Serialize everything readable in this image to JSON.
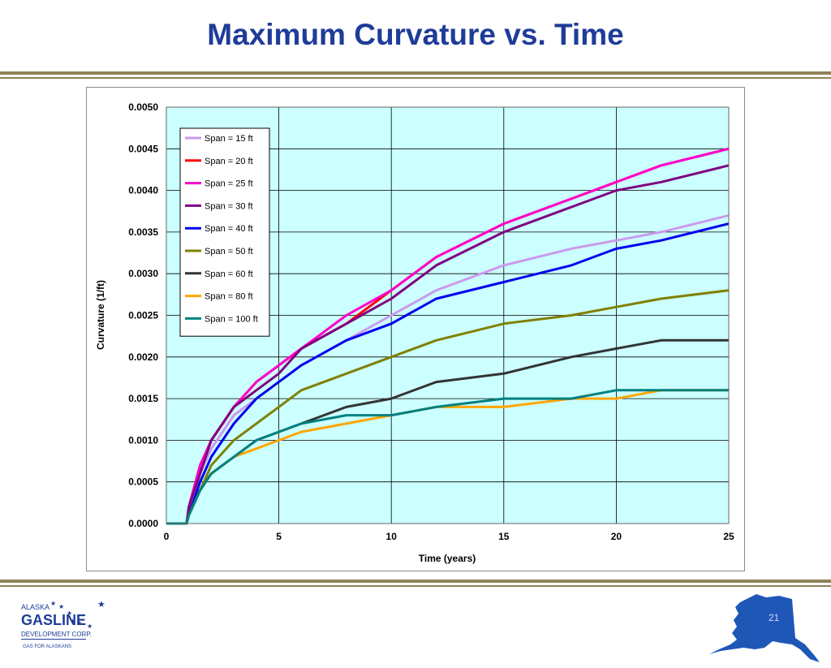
{
  "slide": {
    "title": "Maximum Curvature vs. Time",
    "page_number": "21"
  },
  "logo": {
    "line1": "ALASKA",
    "line2": "GASLINE",
    "line3": "DEVELOPMENT CORP.",
    "tagline": "GAS FOR ALASKANS"
  },
  "colors": {
    "plot_background": "#ccffff",
    "title": "#1f3c99",
    "rule": "#8f8257",
    "map": "#1f57b7"
  },
  "chart_data": {
    "type": "line",
    "xlabel": "Time (years)",
    "ylabel": "Curvature (1/ft)",
    "xlim": [
      0,
      25
    ],
    "ylim": [
      0,
      0.005
    ],
    "xticks": [
      0,
      5,
      10,
      15,
      20,
      25
    ],
    "yticks": [
      "0.0000",
      "0.0005",
      "0.0010",
      "0.0015",
      "0.0020",
      "0.0025",
      "0.0030",
      "0.0035",
      "0.0040",
      "0.0045",
      "0.0050"
    ],
    "grid": true,
    "legend_position": "top-left",
    "x": [
      0,
      0.9,
      1,
      1.5,
      2,
      3,
      4,
      5,
      6,
      8,
      10,
      12,
      15,
      18,
      20,
      22,
      25
    ],
    "series": [
      {
        "name": "Span = 15 ft",
        "color": "#cc99ee",
        "values": [
          0,
          0,
          0.0001,
          0.0006,
          0.0009,
          0.0013,
          0.0015,
          0.0017,
          0.0019,
          0.0022,
          0.0025,
          0.0028,
          0.0031,
          0.0033,
          0.0034,
          0.0035,
          0.0037
        ]
      },
      {
        "name": "Span = 20 ft",
        "color": "#ff0000",
        "values": [
          0,
          0,
          0.0002,
          0.0007,
          0.001,
          0.0014,
          0.0017,
          0.0019,
          0.0021,
          0.0024,
          0.0028,
          0.0032,
          0.0036,
          0.0039,
          0.0041,
          0.0043,
          0.0045
        ]
      },
      {
        "name": "Span = 25 ft",
        "color": "#ff00cc",
        "values": [
          0,
          0,
          0.0002,
          0.0007,
          0.001,
          0.0014,
          0.0017,
          0.0019,
          0.0021,
          0.0025,
          0.0028,
          0.0032,
          0.0036,
          0.0039,
          0.0041,
          0.0043,
          0.0045
        ]
      },
      {
        "name": "Span = 30 ft",
        "color": "#800080",
        "values": [
          0,
          0,
          0.0002,
          0.0006,
          0.001,
          0.0014,
          0.0016,
          0.0018,
          0.0021,
          0.0024,
          0.0027,
          0.0031,
          0.0035,
          0.0038,
          0.004,
          0.0041,
          0.0043
        ]
      },
      {
        "name": "Span = 40 ft",
        "color": "#0000ee",
        "values": [
          0,
          0,
          0.0001,
          0.0005,
          0.0008,
          0.0012,
          0.0015,
          0.0017,
          0.0019,
          0.0022,
          0.0024,
          0.0027,
          0.0029,
          0.0031,
          0.0033,
          0.0034,
          0.0036
        ]
      },
      {
        "name": "Span = 50 ft",
        "color": "#808000",
        "values": [
          0,
          0,
          0.0001,
          0.0004,
          0.0007,
          0.001,
          0.0012,
          0.0014,
          0.0016,
          0.0018,
          0.002,
          0.0022,
          0.0024,
          0.0025,
          0.0026,
          0.0027,
          0.0028
        ]
      },
      {
        "name": "Span = 60 ft",
        "color": "#333333",
        "values": [
          0,
          0,
          0.0001,
          0.0004,
          0.0006,
          0.0008,
          0.001,
          0.0011,
          0.0012,
          0.0014,
          0.0015,
          0.0017,
          0.0018,
          0.002,
          0.0021,
          0.0022,
          0.0022
        ]
      },
      {
        "name": "Span = 80 ft",
        "color": "#ffa500",
        "values": [
          0,
          0,
          0.0001,
          0.0004,
          0.0006,
          0.0008,
          0.0009,
          0.001,
          0.0011,
          0.0012,
          0.0013,
          0.0014,
          0.0014,
          0.0015,
          0.0015,
          0.0016,
          0.0016
        ]
      },
      {
        "name": "Span = 100 ft",
        "color": "#008080",
        "values": [
          0,
          0,
          0.0001,
          0.0004,
          0.0006,
          0.0008,
          0.001,
          0.0011,
          0.0012,
          0.0013,
          0.0013,
          0.0014,
          0.0015,
          0.0015,
          0.0016,
          0.0016,
          0.0016
        ]
      }
    ]
  }
}
